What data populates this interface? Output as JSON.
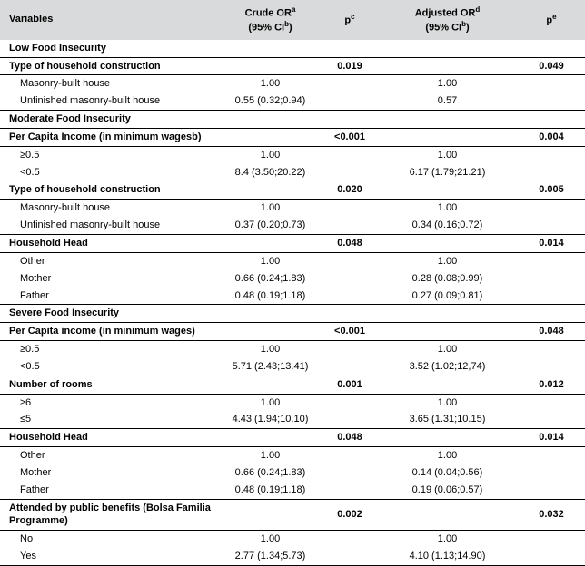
{
  "headers": {
    "variables": "Variables",
    "crude_or_line1": "Crude OR",
    "crude_or_line2": "(95% CI",
    "sup_a": "a",
    "sup_b": "b",
    "close_paren": ")",
    "p1": "p",
    "sup_c": "c",
    "adj_or_line1": "Adjusted OR",
    "adj_or_line2": "(95% CI",
    "sup_d": "d",
    "sup_b2": "b",
    "p2": "p",
    "sup_e": "e"
  },
  "sections": [
    {
      "title": "Low Food Insecurity",
      "groups": [
        {
          "title": "Type of household construction",
          "p1": "0.019",
          "p2": "0.049",
          "rows": [
            {
              "label": "Masonry-built house",
              "crude": "1.00",
              "adj": "1.00"
            },
            {
              "label": "Unfinished masonry-built house",
              "crude": "0.55 (0.32;0.94)",
              "adj": "0.57"
            }
          ]
        }
      ]
    },
    {
      "title": "Moderate Food Insecurity",
      "groups": [
        {
          "title": "Per Capita Income (in minimum wagesb)",
          "p1": "<0.001",
          "p2": "0.004",
          "rows": [
            {
              "label": "≥0.5",
              "crude": "1.00",
              "adj": "1.00"
            },
            {
              "label": "<0.5",
              "crude": "8.4 (3.50;20.22)",
              "adj": "6.17 (1.79;21.21)"
            }
          ]
        },
        {
          "title": "Type of household construction",
          "p1": "0.020",
          "p2": "0.005",
          "rows": [
            {
              "label": "Masonry-built house",
              "crude": "1.00",
              "adj": "1.00"
            },
            {
              "label": "Unfinished masonry-built house",
              "crude": "0.37 (0.20;0.73)",
              "adj": "0.34 (0.16;0.72)"
            }
          ]
        },
        {
          "title": "Household Head",
          "p1": "0.048",
          "p2": "0.014",
          "rows": [
            {
              "label": "Other",
              "crude": "1.00",
              "adj": "1.00"
            },
            {
              "label": "Mother",
              "crude": "0.66 (0.24;1.83)",
              "adj": "0.28 (0.08;0.99)"
            },
            {
              "label": "Father",
              "crude": "0.48 (0.19;1.18)",
              "adj": "0.27 (0.09;0.81)"
            }
          ]
        }
      ]
    },
    {
      "title": "Severe Food Insecurity",
      "groups": [
        {
          "title": "Per Capita income (in minimum wages)",
          "p1": "<0.001",
          "p2": "0.048",
          "rows": [
            {
              "label": "≥0.5",
              "crude": "1.00",
              "adj": "1.00"
            },
            {
              "label": "<0.5",
              "crude": "5.71 (2.43;13.41)",
              "adj": "3.52 (1.02;12,74)"
            }
          ]
        },
        {
          "title": "Number of rooms",
          "p1": "0.001",
          "p2": "0.012",
          "rows": [
            {
              "label": "≥6",
              "crude": "1.00",
              "adj": "1.00"
            },
            {
              "label": "≤5",
              "crude": "4.43 (1.94;10.10)",
              "adj": "3.65 (1.31;10.15)"
            }
          ]
        },
        {
          "title": "Household Head",
          "p1": "0.048",
          "p2": "0.014",
          "rows": [
            {
              "label": "Other",
              "crude": "1.00",
              "adj": "1.00"
            },
            {
              "label": "Mother",
              "crude": "0.66 (0.24;1.83)",
              "adj": "0.14 (0.04;0.56)"
            },
            {
              "label": "Father",
              "crude": "0.48 (0.19;1.18)",
              "adj": "0.19 (0.06;0.57)"
            }
          ]
        },
        {
          "title": "Attended by public benefits (Bolsa Familia Programme)",
          "p1": "0.002",
          "p2": "0.032",
          "rows": [
            {
              "label": "No",
              "crude": "1.00",
              "adj": "1.00"
            },
            {
              "label": "Yes",
              "crude": "2.77 (1.34;5.73)",
              "adj": "4.10 (1.13;14.90)"
            }
          ]
        }
      ]
    }
  ]
}
